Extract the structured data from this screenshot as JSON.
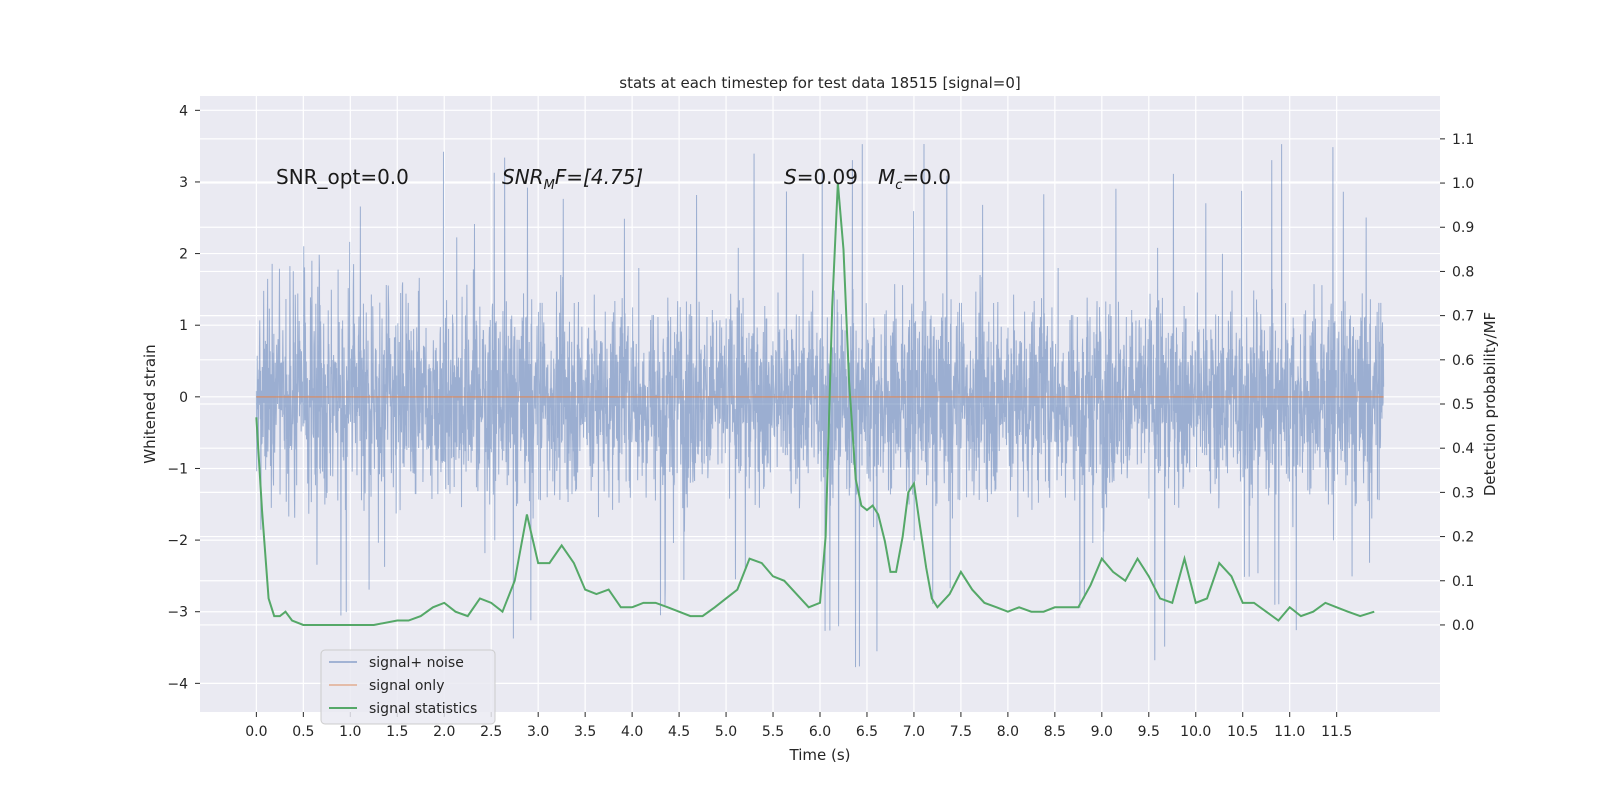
{
  "chart_data": {
    "type": "line",
    "title": "stats at each timestep for test data 18515 [signal=0]",
    "xlabel": "Time (s)",
    "ylabel": "Whitened strain",
    "y2label": "Detection probability/MF",
    "xlim": [
      -0.6,
      12.6
    ],
    "ylim": [
      -4.4,
      4.2
    ],
    "y2lim": [
      -0.197,
      1.197
    ],
    "x_ticks": [
      0.0,
      0.5,
      1.0,
      1.5,
      2.0,
      2.5,
      3.0,
      3.5,
      4.0,
      4.5,
      5.0,
      5.5,
      6.0,
      6.5,
      7.0,
      7.5,
      8.0,
      8.5,
      9.0,
      9.5,
      10.0,
      10.5,
      11.0,
      11.5
    ],
    "x_tick_labels": [
      "0.0",
      "0.5",
      "1.0",
      "1.5",
      "2.0",
      "2.5",
      "3.0",
      "3.5",
      "4.0",
      "4.5",
      "5.0",
      "5.5",
      "6.0",
      "6.5",
      "7.0",
      "7.5",
      "8.0",
      "8.5",
      "9.0",
      "9.5",
      "10.0",
      "10.5",
      "11.0",
      "11.5"
    ],
    "y_ticks": [
      -4,
      -3,
      -2,
      -1,
      0,
      1,
      2,
      3,
      4
    ],
    "y_tick_labels": [
      "−4",
      "−3",
      "−2",
      "−1",
      "0",
      "1",
      "2",
      "3",
      "4"
    ],
    "y2_ticks": [
      0.0,
      0.1,
      0.2,
      0.3,
      0.4,
      0.5,
      0.6,
      0.7,
      0.8,
      0.9,
      1.0,
      1.1
    ],
    "y2_tick_labels": [
      "0.0",
      "0.1",
      "0.2",
      "0.3",
      "0.4",
      "0.5",
      "0.6",
      "0.7",
      "0.8",
      "0.9",
      "1.0",
      "1.1"
    ],
    "grid": true,
    "legend_position": "bottom-left",
    "annotations": {
      "snr_opt": "SNR_opt=0.0",
      "snr_mf_base": "SNR",
      "snr_mf_sub": "M",
      "snr_mf_tail": "F=[4.75]",
      "s_var": "S",
      "s_val": "=0.09",
      "mc_var": "M",
      "mc_sub": "c",
      "mc_val": "=0.0"
    },
    "series": [
      {
        "name": "signal+ noise",
        "color": "#4c72b0",
        "style": "noise",
        "x_range": [
          0.0,
          12.0
        ],
        "envelope_max": [
          3.0,
          2.2,
          2.9,
          3.6,
          2.9,
          3.5,
          3.3,
          2.9,
          3.1,
          3.2,
          3.6,
          3.5,
          3.6,
          2.9,
          3.7,
          3.2,
          3.3,
          3.3,
          3.3,
          3.3,
          3.3,
          3.6,
          3.9,
          3.0
        ],
        "envelope_min": [
          -2.6,
          -3.1,
          -2.9,
          -3.6,
          -2.6,
          -3.5,
          -2.9,
          -3.4,
          -3.1,
          -3.1,
          -2.7,
          -3.5,
          -3.9,
          -3.6,
          -3.0,
          -3.0,
          -3.2,
          -3.0,
          -2.8,
          -3.9,
          -2.9,
          -3.0,
          -3.3,
          -2.6
        ]
      },
      {
        "name": "signal only",
        "color": "#dd8452",
        "axis": "left",
        "x": [
          0.0,
          12.0
        ],
        "y": [
          0.0,
          0.0
        ]
      },
      {
        "name": "signal statistics",
        "color": "#55a868",
        "axis": "right",
        "x": [
          0.0,
          0.06,
          0.13,
          0.19,
          0.25,
          0.31,
          0.38,
          0.5,
          0.62,
          0.75,
          1.0,
          1.25,
          1.5,
          1.62,
          1.75,
          1.88,
          2.0,
          2.12,
          2.25,
          2.38,
          2.5,
          2.62,
          2.75,
          2.88,
          3.0,
          3.12,
          3.25,
          3.38,
          3.5,
          3.62,
          3.75,
          3.88,
          4.0,
          4.12,
          4.25,
          4.38,
          4.5,
          4.62,
          4.75,
          4.88,
          5.0,
          5.12,
          5.25,
          5.38,
          5.5,
          5.62,
          5.75,
          5.88,
          6.0,
          6.06,
          6.13,
          6.19,
          6.25,
          6.31,
          6.38,
          6.44,
          6.5,
          6.56,
          6.62,
          6.69,
          6.75,
          6.81,
          6.88,
          6.94,
          7.0,
          7.06,
          7.13,
          7.19,
          7.25,
          7.38,
          7.5,
          7.62,
          7.75,
          7.88,
          8.0,
          8.12,
          8.25,
          8.38,
          8.5,
          8.62,
          8.75,
          8.88,
          9.0,
          9.12,
          9.25,
          9.38,
          9.5,
          9.62,
          9.75,
          9.88,
          10.0,
          10.12,
          10.25,
          10.38,
          10.5,
          10.62,
          10.75,
          10.88,
          11.0,
          11.12,
          11.25,
          11.38,
          11.5,
          11.62,
          11.75,
          11.9
        ],
        "y": [
          0.47,
          0.26,
          0.06,
          0.02,
          0.02,
          0.03,
          0.01,
          0.0,
          0.0,
          0.0,
          0.0,
          0.0,
          0.01,
          0.01,
          0.02,
          0.04,
          0.05,
          0.03,
          0.02,
          0.06,
          0.05,
          0.03,
          0.1,
          0.25,
          0.14,
          0.14,
          0.18,
          0.14,
          0.08,
          0.07,
          0.08,
          0.04,
          0.04,
          0.05,
          0.05,
          0.04,
          0.03,
          0.02,
          0.02,
          0.04,
          0.06,
          0.08,
          0.15,
          0.14,
          0.11,
          0.1,
          0.07,
          0.04,
          0.05,
          0.2,
          0.72,
          1.0,
          0.85,
          0.55,
          0.33,
          0.27,
          0.26,
          0.27,
          0.25,
          0.19,
          0.12,
          0.12,
          0.2,
          0.3,
          0.32,
          0.23,
          0.13,
          0.06,
          0.04,
          0.07,
          0.12,
          0.08,
          0.05,
          0.04,
          0.03,
          0.04,
          0.03,
          0.03,
          0.04,
          0.04,
          0.04,
          0.09,
          0.15,
          0.12,
          0.1,
          0.15,
          0.11,
          0.06,
          0.05,
          0.15,
          0.05,
          0.06,
          0.14,
          0.11,
          0.05,
          0.05,
          0.03,
          0.01,
          0.04,
          0.02,
          0.03,
          0.05,
          0.04,
          0.03,
          0.02,
          0.03
        ]
      }
    ]
  }
}
